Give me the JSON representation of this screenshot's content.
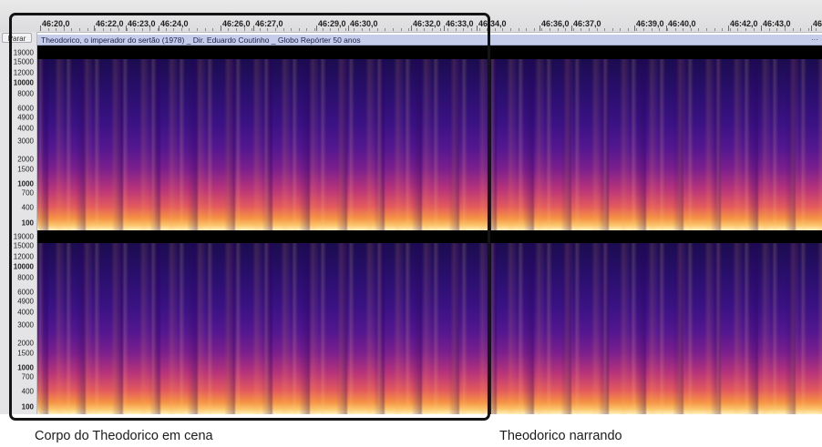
{
  "ruler": {
    "labels": [
      "46:20,0",
      "46:22,0",
      "46:23,0",
      "46:24,0",
      "46:26,0",
      "46:27,0",
      "46:29,0",
      "46:30,0",
      "46:32,0",
      "46:33,0",
      "46:34,0",
      "46:36,0",
      "46:37,0",
      "46:39,0",
      "46:40,0",
      "46:42,0",
      "46:43,0",
      "46"
    ]
  },
  "track": {
    "stop_button": "Parar",
    "clip_title": "Theodorico, o imperador do sertão (1978) _ Dir. Eduardo Coutinho _ Globo Repórter 50 anos",
    "clip_menu": "···",
    "freq_axis_labels": [
      "19000",
      "15000",
      "12000",
      "10000",
      "8000",
      "6000",
      "4900",
      "4000",
      "3000",
      "2000",
      "1500",
      "1000",
      "700",
      "400",
      "100"
    ],
    "bold_freq_labels": [
      "10000",
      "1000",
      "100"
    ]
  },
  "colors": {
    "selection_frame": "#141414",
    "clip_bar": "#c6cdea",
    "spectrogram_low": "#1b0c4f",
    "spectrogram_high": "#fff2c2"
  },
  "captions": {
    "left": "Corpo do Theodorico em cena",
    "right": "Theodorico narrando"
  }
}
